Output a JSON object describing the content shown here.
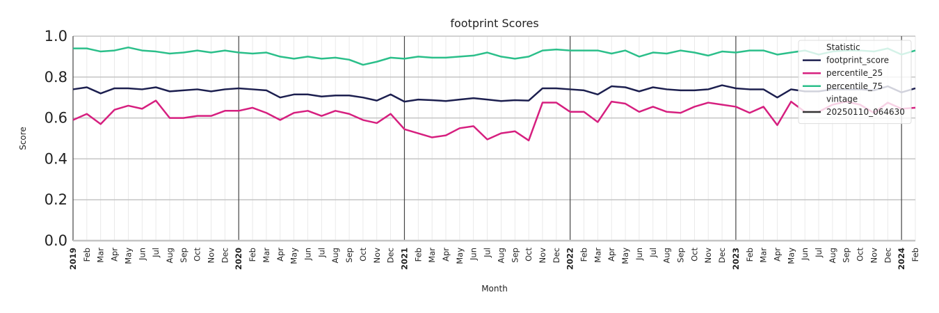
{
  "chart_data": {
    "type": "line",
    "title": "footprint Scores",
    "x_label": "Month",
    "y_label": "Score",
    "categories": [
      "2019",
      "Feb",
      "Mar",
      "Apr",
      "May",
      "Jun",
      "Jul",
      "Aug",
      "Sep",
      "Oct",
      "Nov",
      "Dec",
      "2020",
      "Feb",
      "Mar",
      "Apr",
      "May",
      "Jun",
      "Jul",
      "Aug",
      "Sep",
      "Oct",
      "Nov",
      "Dec",
      "2021",
      "Feb",
      "Mar",
      "Apr",
      "May",
      "Jun",
      "Jul",
      "Aug",
      "Sep",
      "Oct",
      "Nov",
      "Dec",
      "2022",
      "Feb",
      "Mar",
      "Apr",
      "May",
      "Jun",
      "Jul",
      "Aug",
      "Sep",
      "Oct",
      "Nov",
      "Dec",
      "2023",
      "Feb",
      "Mar",
      "Apr",
      "May",
      "Jun",
      "Jul",
      "Aug",
      "Sep",
      "Oct",
      "Nov",
      "Dec",
      "2024",
      "Feb"
    ],
    "series": [
      {
        "name": "footprint_score",
        "color": "#1c1f4f",
        "values": [
          0.74,
          0.75,
          0.72,
          0.745,
          0.745,
          0.74,
          0.75,
          0.73,
          0.735,
          0.74,
          0.73,
          0.74,
          0.745,
          0.74,
          0.735,
          0.7,
          0.715,
          0.715,
          0.705,
          0.71,
          0.71,
          0.7,
          0.685,
          0.715,
          0.68,
          0.69,
          0.687,
          0.683,
          0.69,
          0.697,
          0.69,
          0.683,
          0.687,
          0.685,
          0.745,
          0.745,
          0.74,
          0.735,
          0.715,
          0.755,
          0.75,
          0.73,
          0.75,
          0.74,
          0.735,
          0.735,
          0.74,
          0.76,
          0.745,
          0.74,
          0.74,
          0.7,
          0.74,
          0.73,
          0.73,
          0.74,
          0.74,
          0.74,
          0.735,
          0.755,
          0.725,
          0.745
        ]
      },
      {
        "name": "percentile_25",
        "color": "#d61f7f",
        "values": [
          0.59,
          0.62,
          0.57,
          0.64,
          0.66,
          0.645,
          0.685,
          0.6,
          0.6,
          0.61,
          0.61,
          0.635,
          0.635,
          0.65,
          0.625,
          0.59,
          0.625,
          0.635,
          0.61,
          0.635,
          0.62,
          0.59,
          0.575,
          0.62,
          0.545,
          0.525,
          0.505,
          0.515,
          0.55,
          0.56,
          0.495,
          0.525,
          0.535,
          0.49,
          0.675,
          0.675,
          0.63,
          0.63,
          0.58,
          0.68,
          0.67,
          0.63,
          0.655,
          0.63,
          0.625,
          0.655,
          0.675,
          0.665,
          0.655,
          0.625,
          0.655,
          0.565,
          0.68,
          0.63,
          0.63,
          0.665,
          0.68,
          0.665,
          0.625,
          0.675,
          0.645,
          0.65
        ]
      },
      {
        "name": "percentile_75",
        "color": "#2bbf8a",
        "values": [
          0.94,
          0.94,
          0.925,
          0.93,
          0.945,
          0.93,
          0.925,
          0.915,
          0.92,
          0.93,
          0.92,
          0.93,
          0.92,
          0.915,
          0.92,
          0.9,
          0.89,
          0.9,
          0.89,
          0.895,
          0.885,
          0.86,
          0.875,
          0.895,
          0.89,
          0.9,
          0.895,
          0.895,
          0.9,
          0.905,
          0.92,
          0.9,
          0.89,
          0.9,
          0.93,
          0.935,
          0.93,
          0.93,
          0.93,
          0.915,
          0.93,
          0.9,
          0.92,
          0.915,
          0.93,
          0.92,
          0.905,
          0.925,
          0.92,
          0.93,
          0.93,
          0.91,
          0.92,
          0.93,
          0.91,
          0.925,
          0.93,
          0.93,
          0.925,
          0.94,
          0.91,
          0.93
        ]
      }
    ],
    "ylim": [
      0,
      1
    ],
    "yticks": [
      {
        "value": 0,
        "label": "0.0"
      },
      0.2,
      0.4,
      0.6,
      0.8,
      {
        "value": 1,
        "label": "1.0"
      }
    ],
    "grid": true,
    "legend": {
      "title": "Statistic",
      "position": "upper right",
      "group_title": "vintage",
      "group_entries": [
        {
          "name": "20250110_064630",
          "color": "#333333"
        }
      ]
    }
  }
}
